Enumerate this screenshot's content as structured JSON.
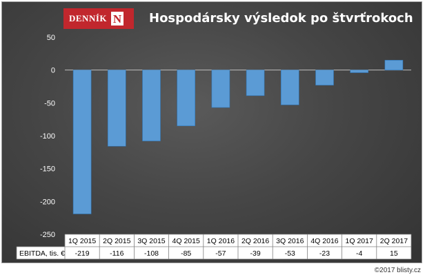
{
  "logo": {
    "text": "DENNÍK",
    "mark": "N"
  },
  "title": "Hospodársky výsledok po štvrťrokoch",
  "copyright": "©2017 blisty.cz",
  "colors": {
    "bar": "#5b9bd5",
    "background": "#3f3f3f",
    "brand": "#c1272d"
  },
  "chart_data": {
    "type": "bar",
    "title": "Hospodársky výsledok po štvrťrokoch",
    "categories": [
      "1Q 2015",
      "2Q 2015",
      "3Q 2015",
      "4Q 2015",
      "1Q 2016",
      "2Q 2016",
      "3Q 2016",
      "4Q 2016",
      "1Q 2017",
      "2Q 2017"
    ],
    "series": [
      {
        "name": "EBITDA, tis. €",
        "values": [
          -219,
          -116,
          -108,
          -85,
          -57,
          -39,
          -53,
          -23,
          -4,
          15
        ]
      }
    ],
    "ylim": [
      -250,
      50
    ],
    "yticks": [
      50,
      0,
      -50,
      -100,
      -150,
      -200,
      -250
    ],
    "grid": false,
    "data_table": true
  }
}
